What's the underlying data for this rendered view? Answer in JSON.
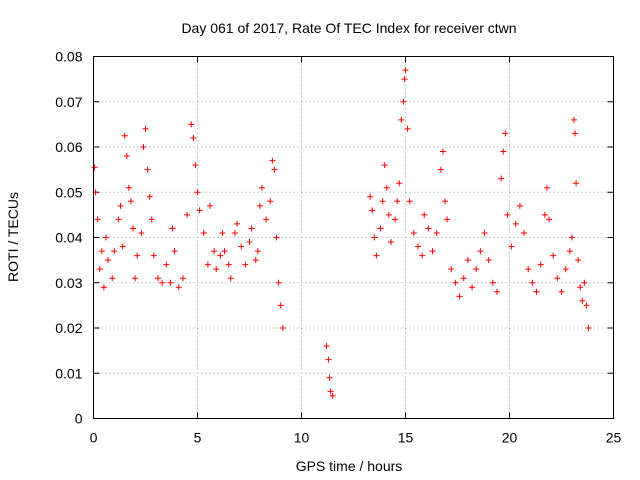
{
  "chart_data": {
    "type": "scatter",
    "title": "Day 061 of 2017, Rate Of TEC Index for receiver ctwn",
    "xlabel": "GPS time / hours",
    "ylabel": "ROTI / TECUs",
    "xlim": [
      0,
      25
    ],
    "ylim": [
      0,
      0.08
    ],
    "xticks": [
      "0",
      "5",
      "10",
      "15",
      "20",
      "25"
    ],
    "yticks": [
      "0",
      "0.01",
      "0.02",
      "0.03",
      "0.04",
      "0.05",
      "0.06",
      "0.07",
      "0.08"
    ],
    "grid": true,
    "marker": "plus",
    "color": "#ff0000",
    "series": [
      {
        "points": [
          [
            0.05,
            0.0555
          ],
          [
            0.1,
            0.05
          ],
          [
            0.2,
            0.044
          ],
          [
            0.3,
            0.033
          ],
          [
            0.4,
            0.037
          ],
          [
            0.5,
            0.029
          ],
          [
            0.6,
            0.04
          ],
          [
            0.7,
            0.035
          ],
          [
            0.9,
            0.031
          ],
          [
            1.0,
            0.037
          ],
          [
            1.2,
            0.044
          ],
          [
            1.3,
            0.047
          ],
          [
            1.4,
            0.038
          ],
          [
            1.5,
            0.0625
          ],
          [
            1.6,
            0.058
          ],
          [
            1.7,
            0.051
          ],
          [
            1.8,
            0.048
          ],
          [
            1.9,
            0.042
          ],
          [
            2.0,
            0.031
          ],
          [
            2.1,
            0.036
          ],
          [
            2.3,
            0.041
          ],
          [
            2.4,
            0.06
          ],
          [
            2.5,
            0.064
          ],
          [
            2.6,
            0.055
          ],
          [
            2.7,
            0.049
          ],
          [
            2.8,
            0.044
          ],
          [
            2.9,
            0.036
          ],
          [
            3.1,
            0.031
          ],
          [
            3.3,
            0.03
          ],
          [
            3.5,
            0.034
          ],
          [
            3.7,
            0.03
          ],
          [
            3.8,
            0.042
          ],
          [
            3.9,
            0.037
          ],
          [
            4.1,
            0.029
          ],
          [
            4.3,
            0.031
          ],
          [
            4.5,
            0.045
          ],
          [
            4.7,
            0.065
          ],
          [
            4.8,
            0.062
          ],
          [
            4.9,
            0.056
          ],
          [
            5.0,
            0.05
          ],
          [
            5.1,
            0.046
          ],
          [
            5.3,
            0.041
          ],
          [
            5.5,
            0.034
          ],
          [
            5.6,
            0.047
          ],
          [
            5.8,
            0.037
          ],
          [
            5.9,
            0.033
          ],
          [
            6.1,
            0.036
          ],
          [
            6.2,
            0.041
          ],
          [
            6.3,
            0.037
          ],
          [
            6.5,
            0.034
          ],
          [
            6.6,
            0.031
          ],
          [
            6.8,
            0.041
          ],
          [
            6.9,
            0.043
          ],
          [
            7.1,
            0.038
          ],
          [
            7.3,
            0.034
          ],
          [
            7.5,
            0.039
          ],
          [
            7.6,
            0.042
          ],
          [
            7.8,
            0.035
          ],
          [
            7.9,
            0.037
          ],
          [
            8.0,
            0.047
          ],
          [
            8.1,
            0.051
          ],
          [
            8.3,
            0.044
          ],
          [
            8.5,
            0.048
          ],
          [
            8.6,
            0.057
          ],
          [
            8.7,
            0.055
          ],
          [
            8.8,
            0.04
          ],
          [
            8.9,
            0.03
          ],
          [
            9.0,
            0.025
          ],
          [
            9.1,
            0.02
          ],
          [
            11.2,
            0.016
          ],
          [
            11.3,
            0.013
          ],
          [
            11.35,
            0.009
          ],
          [
            11.4,
            0.006
          ],
          [
            11.5,
            0.005
          ],
          [
            13.3,
            0.049
          ],
          [
            13.4,
            0.046
          ],
          [
            13.5,
            0.04
          ],
          [
            13.6,
            0.036
          ],
          [
            13.8,
            0.042
          ],
          [
            13.9,
            0.048
          ],
          [
            14.0,
            0.056
          ],
          [
            14.1,
            0.051
          ],
          [
            14.2,
            0.045
          ],
          [
            14.3,
            0.039
          ],
          [
            14.5,
            0.044
          ],
          [
            14.6,
            0.048
          ],
          [
            14.7,
            0.052
          ],
          [
            14.8,
            0.066
          ],
          [
            14.9,
            0.07
          ],
          [
            14.95,
            0.075
          ],
          [
            15.0,
            0.077
          ],
          [
            15.1,
            0.064
          ],
          [
            15.2,
            0.048
          ],
          [
            15.4,
            0.041
          ],
          [
            15.6,
            0.038
          ],
          [
            15.8,
            0.036
          ],
          [
            15.9,
            0.045
          ],
          [
            16.1,
            0.042
          ],
          [
            16.3,
            0.037
          ],
          [
            16.5,
            0.041
          ],
          [
            16.7,
            0.055
          ],
          [
            16.8,
            0.059
          ],
          [
            16.9,
            0.048
          ],
          [
            17.0,
            0.044
          ],
          [
            17.2,
            0.033
          ],
          [
            17.4,
            0.03
          ],
          [
            17.6,
            0.027
          ],
          [
            17.8,
            0.031
          ],
          [
            18.0,
            0.035
          ],
          [
            18.2,
            0.029
          ],
          [
            18.4,
            0.033
          ],
          [
            18.6,
            0.037
          ],
          [
            18.8,
            0.041
          ],
          [
            19.0,
            0.035
          ],
          [
            19.2,
            0.03
          ],
          [
            19.4,
            0.028
          ],
          [
            19.6,
            0.053
          ],
          [
            19.7,
            0.059
          ],
          [
            19.8,
            0.063
          ],
          [
            19.9,
            0.045
          ],
          [
            20.1,
            0.038
          ],
          [
            20.3,
            0.043
          ],
          [
            20.5,
            0.047
          ],
          [
            20.7,
            0.041
          ],
          [
            20.9,
            0.033
          ],
          [
            21.1,
            0.03
          ],
          [
            21.3,
            0.028
          ],
          [
            21.5,
            0.034
          ],
          [
            21.7,
            0.045
          ],
          [
            21.8,
            0.051
          ],
          [
            21.9,
            0.044
          ],
          [
            22.1,
            0.036
          ],
          [
            22.3,
            0.031
          ],
          [
            22.5,
            0.028
          ],
          [
            22.7,
            0.033
          ],
          [
            22.9,
            0.037
          ],
          [
            23.0,
            0.04
          ],
          [
            23.1,
            0.066
          ],
          [
            23.15,
            0.063
          ],
          [
            23.2,
            0.052
          ],
          [
            23.3,
            0.035
          ],
          [
            23.4,
            0.029
          ],
          [
            23.5,
            0.026
          ],
          [
            23.6,
            0.03
          ],
          [
            23.7,
            0.025
          ],
          [
            23.8,
            0.02
          ]
        ]
      }
    ]
  }
}
